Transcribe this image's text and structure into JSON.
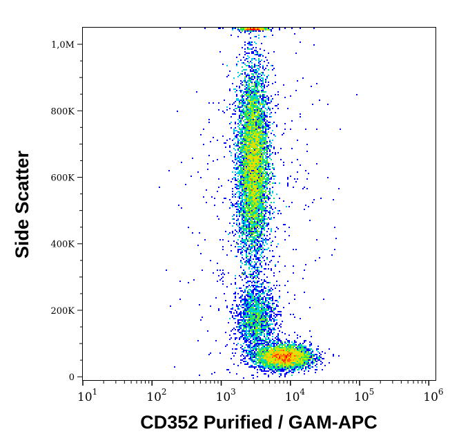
{
  "chart_data": {
    "type": "scatter",
    "subtype": "density-dot-plot",
    "xlabel": "CD352 Purified / GAM-APC",
    "ylabel": "Side Scatter",
    "x_scale": "log",
    "xlim": [
      10,
      1250000
    ],
    "ylim": [
      -10000,
      1050000
    ],
    "x_ticks": [
      {
        "base": "10",
        "exp": "1",
        "value": 10
      },
      {
        "base": "10",
        "exp": "2",
        "value": 100
      },
      {
        "base": "10",
        "exp": "3",
        "value": 1000
      },
      {
        "base": "10",
        "exp": "4",
        "value": 10000
      },
      {
        "base": "10",
        "exp": "5",
        "value": 100000
      },
      {
        "base": "10",
        "exp": "6",
        "value": 1000000
      }
    ],
    "y_ticks": [
      {
        "label": "0",
        "value": 0
      },
      {
        "label": "200K",
        "value": 200000
      },
      {
        "label": "400K",
        "value": 400000
      },
      {
        "label": "600K",
        "value": 600000
      },
      {
        "label": "800K",
        "value": 800000
      },
      {
        "label": "1,0M",
        "value": 1000000
      }
    ],
    "grid": false,
    "color_scale": [
      "#0000ff",
      "#00c8ff",
      "#00e060",
      "#c8f000",
      "#ffd000",
      "#ff0000"
    ],
    "populations": [
      {
        "center_x": 2900,
        "center_y": 640000,
        "log_sd_x": 0.11,
        "sd_y": 140000,
        "count": 9000
      },
      {
        "center_x": 8000,
        "center_y": 60000,
        "log_sd_x": 0.2,
        "sd_y": 18000,
        "count": 4500
      },
      {
        "center_x": 3200,
        "center_y": 170000,
        "log_sd_x": 0.14,
        "sd_y": 50000,
        "count": 1800
      },
      {
        "center_x": 3000,
        "center_y": 1045000,
        "log_sd_x": 0.1,
        "sd_y": 2000,
        "count": 500
      },
      {
        "center_x": 3000,
        "center_y": 450000,
        "log_sd_x": 0.45,
        "sd_y": 330000,
        "count": 700
      }
    ]
  }
}
